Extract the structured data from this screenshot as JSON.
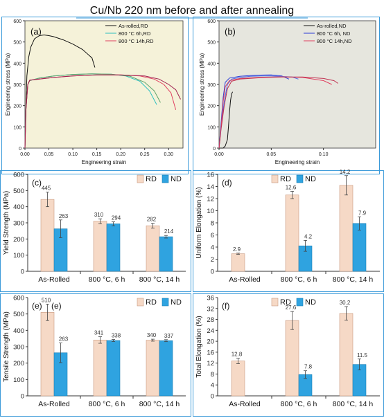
{
  "figure": {
    "title": "Cu/Nb 220 nm before and after annealing",
    "frame_color": "#3a9ad9"
  },
  "chart_data": [
    {
      "panel": "(a)",
      "type": "line",
      "xlabel": "Engineering strain",
      "ylabel": "Engineering stress (MPa)",
      "xlim": [
        0,
        0.33
      ],
      "ylim": [
        0,
        600
      ],
      "xticks": [
        "0.00",
        "0.05",
        "0.10",
        "0.15",
        "0.20",
        "0.25",
        "0.30"
      ],
      "yticks": [
        "0",
        "100",
        "200",
        "300",
        "400",
        "500",
        "600"
      ],
      "background": "#f5f2d9",
      "legend_position": "top-right",
      "series": [
        {
          "name": "As-rolled,RD",
          "color": "#111111",
          "x": [
            0,
            0.002,
            0.004,
            0.008,
            0.012,
            0.02,
            0.03,
            0.04,
            0.05,
            0.06,
            0.08,
            0.1,
            0.12,
            0.14,
            0.146
          ],
          "y": [
            0,
            200,
            340,
            430,
            475,
            515,
            530,
            533,
            530,
            525,
            510,
            490,
            465,
            425,
            380
          ]
        },
        {
          "name": "800 °C 6h,RD",
          "color": "#2bbfbf",
          "x": [
            0,
            0.002,
            0.006,
            0.01,
            0.03,
            0.06,
            0.1,
            0.14,
            0.18,
            0.21,
            0.24,
            0.26,
            0.275
          ],
          "y": [
            0,
            180,
            300,
            318,
            330,
            340,
            347,
            350,
            348,
            340,
            315,
            270,
            205
          ]
        },
        {
          "name": "800 °C 6h,RD",
          "color": "#5fa36b",
          "x": [
            0,
            0.002,
            0.006,
            0.01,
            0.03,
            0.06,
            0.1,
            0.14,
            0.18,
            0.22,
            0.25,
            0.27,
            0.283
          ],
          "y": [
            0,
            180,
            300,
            318,
            330,
            340,
            347,
            350,
            348,
            338,
            310,
            270,
            215
          ]
        },
        {
          "name": "800 °C 14h,RD",
          "color": "#e04060",
          "x": [
            0,
            0.002,
            0.006,
            0.01,
            0.03,
            0.06,
            0.1,
            0.15,
            0.2,
            0.24,
            0.27,
            0.29,
            0.305,
            0.315
          ],
          "y": [
            0,
            180,
            300,
            320,
            325,
            333,
            340,
            345,
            345,
            340,
            325,
            300,
            260,
            180
          ]
        },
        {
          "name": "800 °C 14h,RD",
          "color": "#a02050",
          "x": [
            0,
            0.002,
            0.006,
            0.01,
            0.03,
            0.06,
            0.1,
            0.15,
            0.2,
            0.25,
            0.28,
            0.3,
            0.315,
            0.325
          ],
          "y": [
            0,
            180,
            300,
            320,
            325,
            333,
            340,
            345,
            345,
            340,
            325,
            300,
            275,
            230
          ]
        }
      ],
      "legend_entries": [
        "As-rolled,RD",
        "800 °C 6h,RD",
        "800 °C 14h,RD"
      ]
    },
    {
      "panel": "(b)",
      "type": "line",
      "xlabel": "Engineering strain",
      "ylabel": "Engineering stress (MPa)",
      "xlim": [
        0,
        0.15
      ],
      "ylim": [
        0,
        600
      ],
      "xticks": [
        "0.00",
        "0.05",
        "0.10"
      ],
      "yticks": [
        "0",
        "100",
        "200",
        "300",
        "400",
        "500",
        "600"
      ],
      "background": "#e6e6de",
      "legend_position": "top-right",
      "series": [
        {
          "name": "As-rolled,ND",
          "color": "#111111",
          "x": [
            0,
            0.004,
            0.006,
            0.008,
            0.009,
            0.01,
            0.011,
            0.012,
            0.013
          ],
          "y": [
            0,
            0,
            10,
            40,
            100,
            170,
            225,
            255,
            265
          ]
        },
        {
          "name": "800 °C 6h, ND",
          "color": "#2a3bd6",
          "x": [
            0,
            0.002,
            0.004,
            0.006,
            0.01,
            0.02,
            0.03,
            0.04,
            0.05,
            0.06,
            0.067
          ],
          "y": [
            0,
            120,
            240,
            310,
            330,
            338,
            342,
            344,
            345,
            340,
            325
          ]
        },
        {
          "name": "800 °C 6h, ND",
          "color": "#4a6be8",
          "x": [
            0,
            0.002,
            0.005,
            0.008,
            0.012,
            0.02,
            0.03,
            0.04,
            0.05,
            0.07,
            0.076
          ],
          "y": [
            0,
            100,
            220,
            300,
            325,
            333,
            338,
            340,
            340,
            335,
            325
          ]
        },
        {
          "name": "800 °C 14h,ND",
          "color": "#e04060",
          "x": [
            0,
            0.002,
            0.004,
            0.006,
            0.01,
            0.02,
            0.04,
            0.06,
            0.08,
            0.1,
            0.108
          ],
          "y": [
            0,
            100,
            220,
            290,
            318,
            328,
            334,
            336,
            333,
            318,
            300
          ]
        },
        {
          "name": "800 °C 14h,ND",
          "color": "#c03050",
          "x": [
            0,
            0.002,
            0.005,
            0.008,
            0.012,
            0.02,
            0.04,
            0.06,
            0.08,
            0.1,
            0.11,
            0.114
          ],
          "y": [
            0,
            90,
            200,
            280,
            315,
            325,
            332,
            335,
            335,
            328,
            318,
            305
          ]
        }
      ],
      "legend_entries": [
        "As-rolled,ND",
        "800 °C 6h, ND",
        "800 °C 14h,ND"
      ]
    },
    {
      "panel": "(c)",
      "type": "bar",
      "ylabel": "Yield Strength (MPa)",
      "ylim": [
        0,
        600
      ],
      "yticks": [
        "0",
        "100",
        "200",
        "300",
        "400",
        "500",
        "600"
      ],
      "categories": [
        "As-Rolled",
        "800 °C, 6 h",
        "800 °C, 14 h"
      ],
      "legend_position": "top-right",
      "series": [
        {
          "name": "RD",
          "color": "#f6d9c6",
          "values": [
            445,
            310,
            282
          ],
          "errors": [
            45,
            15,
            15
          ],
          "labels": [
            "445",
            "310",
            "282"
          ]
        },
        {
          "name": "ND",
          "color": "#2fa3e0",
          "values": [
            263,
            294,
            214
          ],
          "errors": [
            55,
            12,
            8
          ],
          "labels": [
            "263",
            "294",
            "214"
          ]
        }
      ]
    },
    {
      "panel": "(d)",
      "type": "bar",
      "ylabel": "Uniform Elongation (%)",
      "ylim": [
        0,
        16
      ],
      "yticks": [
        "0",
        "2",
        "4",
        "6",
        "8",
        "10",
        "12",
        "14",
        "16"
      ],
      "categories": [
        "As-Rolled",
        "800 °C, 6 h",
        "800 °C, 14 h"
      ],
      "legend_position": "top-right",
      "series": [
        {
          "name": "RD",
          "color": "#f6d9c6",
          "values": [
            2.9,
            12.6,
            14.2
          ],
          "errors": [
            0.1,
            0.6,
            1.6
          ],
          "labels": [
            "2.9",
            "12.6",
            "14.2"
          ]
        },
        {
          "name": "ND",
          "color": "#2fa3e0",
          "values": [
            null,
            4.2,
            7.9
          ],
          "errors": [
            0,
            0.9,
            1.1
          ],
          "labels": [
            "",
            "4.2",
            "7.9"
          ]
        }
      ]
    },
    {
      "panel": "(e)",
      "panel_extra_label": "(e)",
      "type": "bar",
      "ylabel": "Tensile Strength (MPa)",
      "ylim": [
        0,
        600
      ],
      "yticks": [
        "0",
        "100",
        "200",
        "300",
        "400",
        "500",
        "600"
      ],
      "categories": [
        "As-Rolled",
        "800 °C, 6 h",
        "800 °C, 14 h"
      ],
      "legend_position": "top-right",
      "series": [
        {
          "name": "RD",
          "color": "#f6d9c6",
          "values": [
            510,
            341,
            340
          ],
          "errors": [
            50,
            20,
            6
          ],
          "labels": [
            "510",
            "341",
            "340"
          ]
        },
        {
          "name": "ND",
          "color": "#2fa3e0",
          "values": [
            263,
            338,
            337
          ],
          "errors": [
            60,
            6,
            6
          ],
          "labels": [
            "263",
            "338",
            "337"
          ]
        }
      ]
    },
    {
      "panel": "(f)",
      "type": "bar",
      "ylabel": "Total Elongation (%)",
      "ylim": [
        0,
        36
      ],
      "yticks": [
        "0",
        "4",
        "8",
        "12",
        "16",
        "20",
        "24",
        "28",
        "32",
        "36"
      ],
      "categories": [
        "As-Rolled",
        "800 °C, 6 h",
        "800 °C, 14 h"
      ],
      "legend_position": "top-right",
      "series": [
        {
          "name": "RD",
          "color": "#f6d9c6",
          "values": [
            12.8,
            27.6,
            30.2
          ],
          "errors": [
            1.0,
            3.3,
            2.5
          ],
          "labels": [
            "12.8",
            "27.6",
            "30.2"
          ]
        },
        {
          "name": "ND",
          "color": "#2fa3e0",
          "values": [
            null,
            7.8,
            11.5
          ],
          "errors": [
            0,
            1.4,
            2.0
          ],
          "labels": [
            "",
            "7.8",
            "11.5"
          ]
        }
      ]
    }
  ]
}
